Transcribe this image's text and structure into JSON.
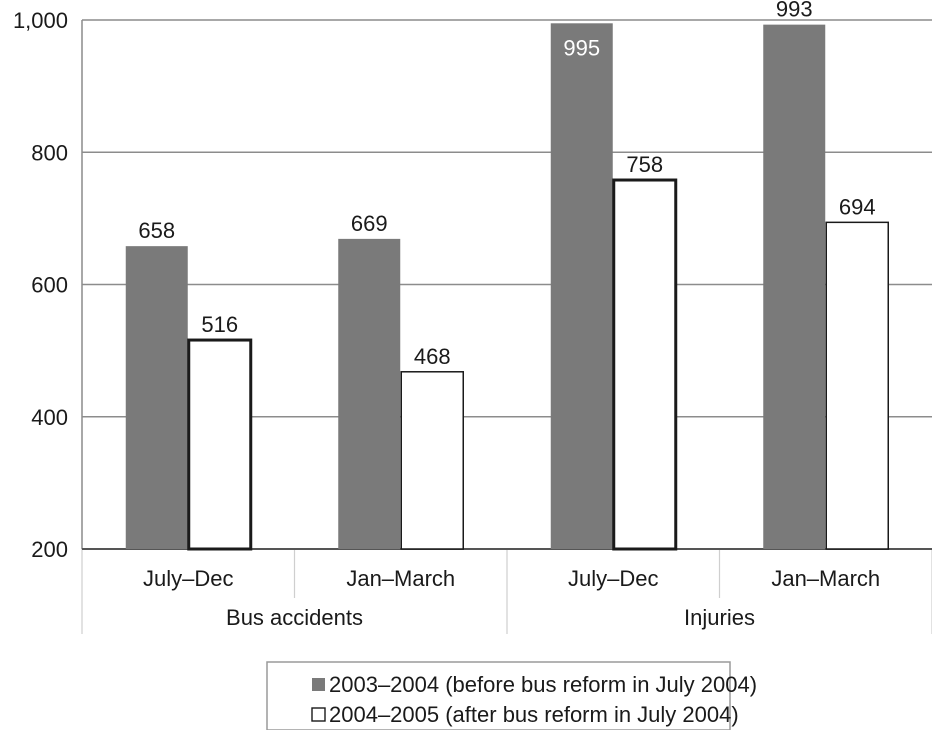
{
  "chart_data": {
    "type": "bar",
    "title": "",
    "xlabel": "",
    "ylabel": "",
    "ylim": [
      200,
      1000
    ],
    "yticks": [
      200,
      400,
      600,
      800,
      1000
    ],
    "ytick_labels": [
      "200",
      "400",
      "600",
      "800",
      "1,000"
    ],
    "grid": true,
    "legend_position": "bottom-center",
    "groups": [
      {
        "label": "Bus accidents",
        "categories": [
          "July–Dec",
          "Jan–March"
        ]
      },
      {
        "label": "Injuries",
        "categories": [
          "July–Dec",
          "Jan–March"
        ]
      }
    ],
    "series": [
      {
        "name": "2003–2004 (before bus reform in July 2004)",
        "color": "#7a7a7a",
        "values": [
          658,
          669,
          995,
          993
        ],
        "labels": [
          "658",
          "669",
          "995",
          "993"
        ]
      },
      {
        "name": "2004–2005 (after bus reform in July 2004)",
        "color": "#ffffff",
        "values": [
          516,
          468,
          758,
          694
        ],
        "labels": [
          "516",
          "468",
          "758",
          "694"
        ]
      }
    ]
  }
}
